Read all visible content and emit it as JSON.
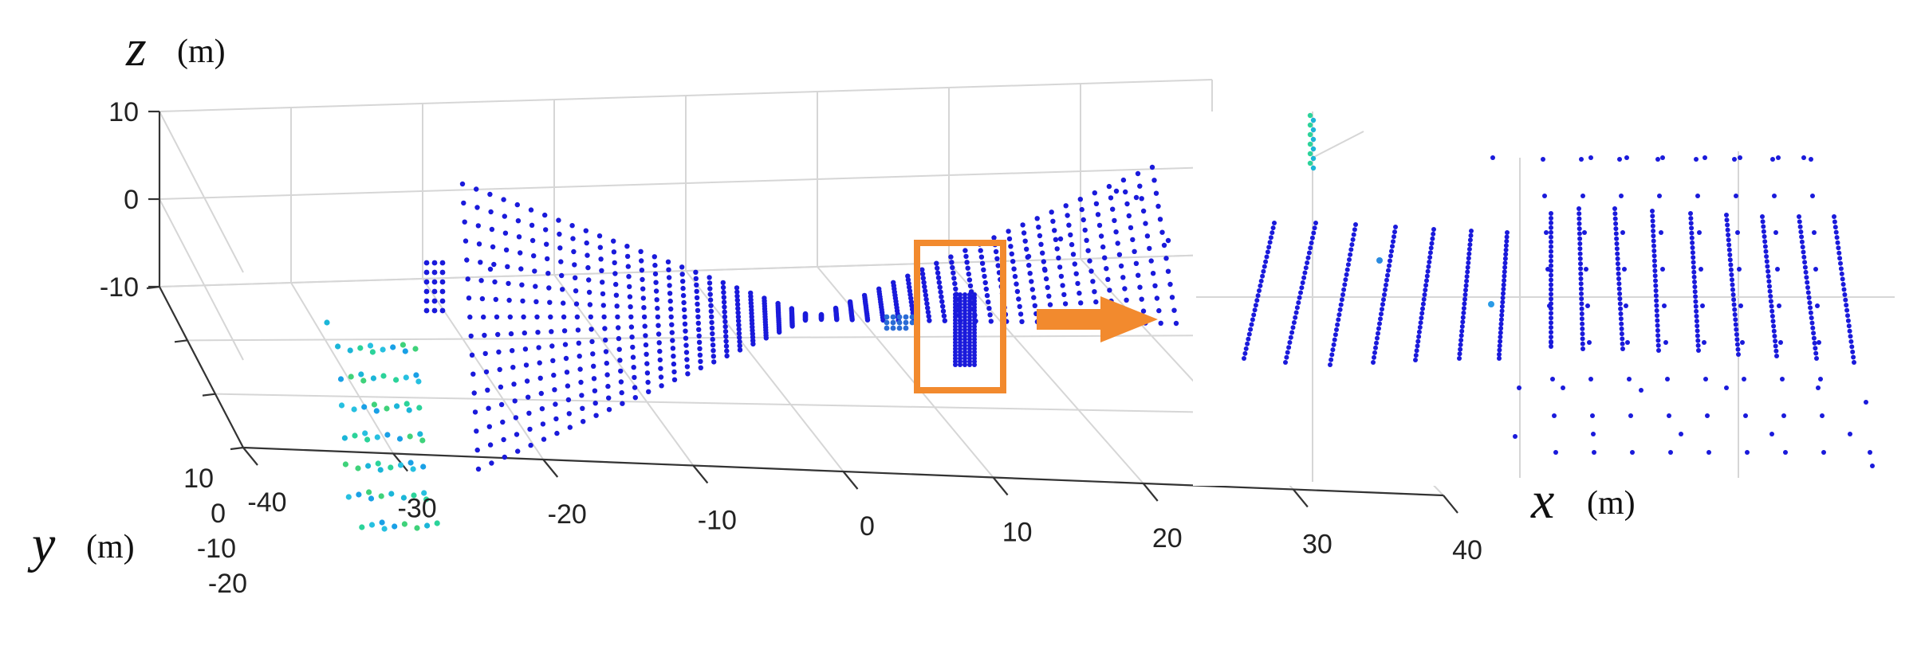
{
  "chart_data": {
    "type": "scatter",
    "title": "",
    "colors": {
      "points": "#1a1adb",
      "highlight_box": "#f28a2e",
      "arrow": "#f28a2e"
    },
    "axes": {
      "x": {
        "var": "x",
        "unit": "(m)",
        "range": [
          -40,
          40
        ],
        "ticks": [
          "-40",
          "-30",
          "-20",
          "-10",
          "0",
          "10",
          "20",
          "30",
          "40"
        ]
      },
      "y": {
        "var": "y",
        "unit": "(m)",
        "range": [
          -20,
          10
        ],
        "ticks": [
          "10",
          "0",
          "-10",
          "-20"
        ]
      },
      "z": {
        "var": "z",
        "unit": "(m)",
        "range": [
          -10,
          10
        ],
        "ticks": [
          "10",
          "0",
          "-10"
        ]
      }
    },
    "grid": true,
    "annotations": {
      "highlight_region": "box around object near x = 10 m",
      "inset": "magnified view of highlighted region"
    }
  }
}
